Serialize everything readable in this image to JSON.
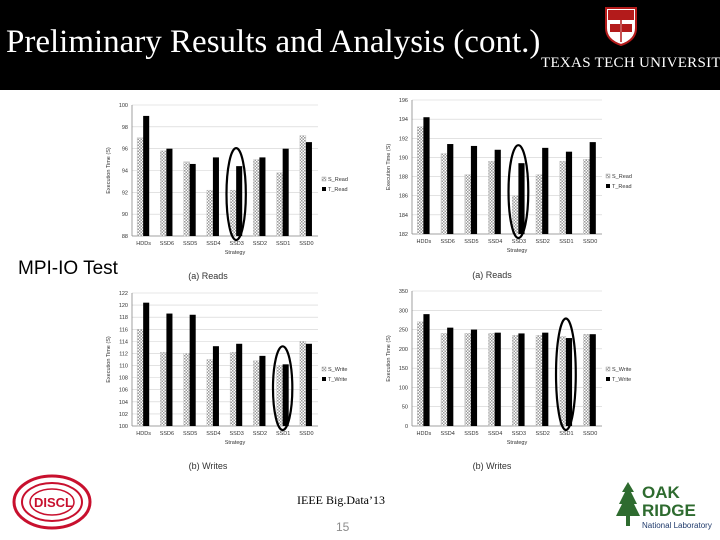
{
  "header": {
    "title": "Preliminary Results and Analysis (cont.)",
    "university": "TEXAS TECH UNIVERSITY",
    "bg_color": "#000000"
  },
  "section_label": "MPI-IO Test",
  "footer": {
    "conference": "IEEE Big.Data’13",
    "page_number": "15"
  },
  "logos": {
    "discl": "DISCL",
    "oak": "OAK",
    "ridge": "RIDGE",
    "lab": "National Laboratory"
  },
  "chart_data": [
    {
      "type": "bar",
      "caption": "(a) Reads",
      "xlabel": "Strategy",
      "ylabel": "Execution Time (S)",
      "categories": [
        "HDDs",
        "SSD6",
        "SSD5",
        "SSD4",
        "SSD3",
        "SSD2",
        "SSD1",
        "SSD0"
      ],
      "ylim": [
        88,
        100
      ],
      "yticks": [
        88,
        90,
        92,
        94,
        96,
        98,
        100
      ],
      "series": [
        {
          "name": "S_Read",
          "values": [
            97.0,
            95.8,
            94.8,
            92.2,
            92.2,
            95.0,
            93.8,
            97.2
          ]
        },
        {
          "name": "T_Read",
          "values": [
            99.0,
            96.0,
            94.6,
            95.2,
            94.4,
            95.2,
            96.0,
            96.6
          ]
        }
      ],
      "highlight_category": "SSD3",
      "legend": "right"
    },
    {
      "type": "bar",
      "caption": "(a) Reads",
      "xlabel": "Strategy",
      "ylabel": "Execution Time (S)",
      "categories": [
        "HDDs",
        "SSD6",
        "SSD5",
        "SSD4",
        "SSD3",
        "SSD2",
        "SSD1",
        "SSD0"
      ],
      "ylim": [
        182,
        196
      ],
      "yticks": [
        182,
        184,
        186,
        188,
        190,
        192,
        194,
        196
      ],
      "series": [
        {
          "name": "S_Read",
          "values": [
            193.2,
            190.4,
            188.2,
            189.6,
            186.0,
            188.2,
            189.6,
            189.8
          ]
        },
        {
          "name": "T_Read",
          "values": [
            194.2,
            191.4,
            191.2,
            190.8,
            189.4,
            191.0,
            190.6,
            191.6
          ]
        }
      ],
      "highlight_category": "SSD3",
      "legend": "right"
    },
    {
      "type": "bar",
      "caption": "(b) Writes",
      "xlabel": "Strategy",
      "ylabel": "Execution Time (S)",
      "categories": [
        "HDDs",
        "SSD6",
        "SSD5",
        "SSD4",
        "SSD3",
        "SSD2",
        "SSD1",
        "SSD0"
      ],
      "ylim": [
        100,
        122
      ],
      "yticks": [
        100,
        102,
        104,
        106,
        108,
        110,
        112,
        114,
        116,
        118,
        120,
        122
      ],
      "series": [
        {
          "name": "S_Write",
          "values": [
            116.0,
            112.2,
            112.0,
            111.0,
            112.2,
            110.8,
            110.0,
            114.0
          ]
        },
        {
          "name": "T_Write",
          "values": [
            120.4,
            118.6,
            118.4,
            113.2,
            113.6,
            111.6,
            110.2,
            113.6
          ]
        }
      ],
      "highlight_category": "SSD1",
      "legend": "right"
    },
    {
      "type": "bar",
      "caption": "(b) Writes",
      "xlabel": "Strategy",
      "ylabel": "Execution Time (S)",
      "categories": [
        "HDDs",
        "SSD4",
        "SSD5",
        "SSD4",
        "SSD3",
        "SSD2",
        "SSD1",
        "SSD0"
      ],
      "ylim": [
        0,
        350
      ],
      "yticks": [
        0,
        50,
        100,
        150,
        200,
        250,
        300,
        350
      ],
      "series": [
        {
          "name": "S_Write",
          "values": [
            270,
            240,
            240,
            240,
            235,
            235,
            232,
            238
          ]
        },
        {
          "name": "T_Write",
          "values": [
            290,
            255,
            250,
            242,
            240,
            242,
            228,
            238
          ]
        }
      ],
      "highlight_category": "SSD1",
      "legend": "right"
    }
  ]
}
